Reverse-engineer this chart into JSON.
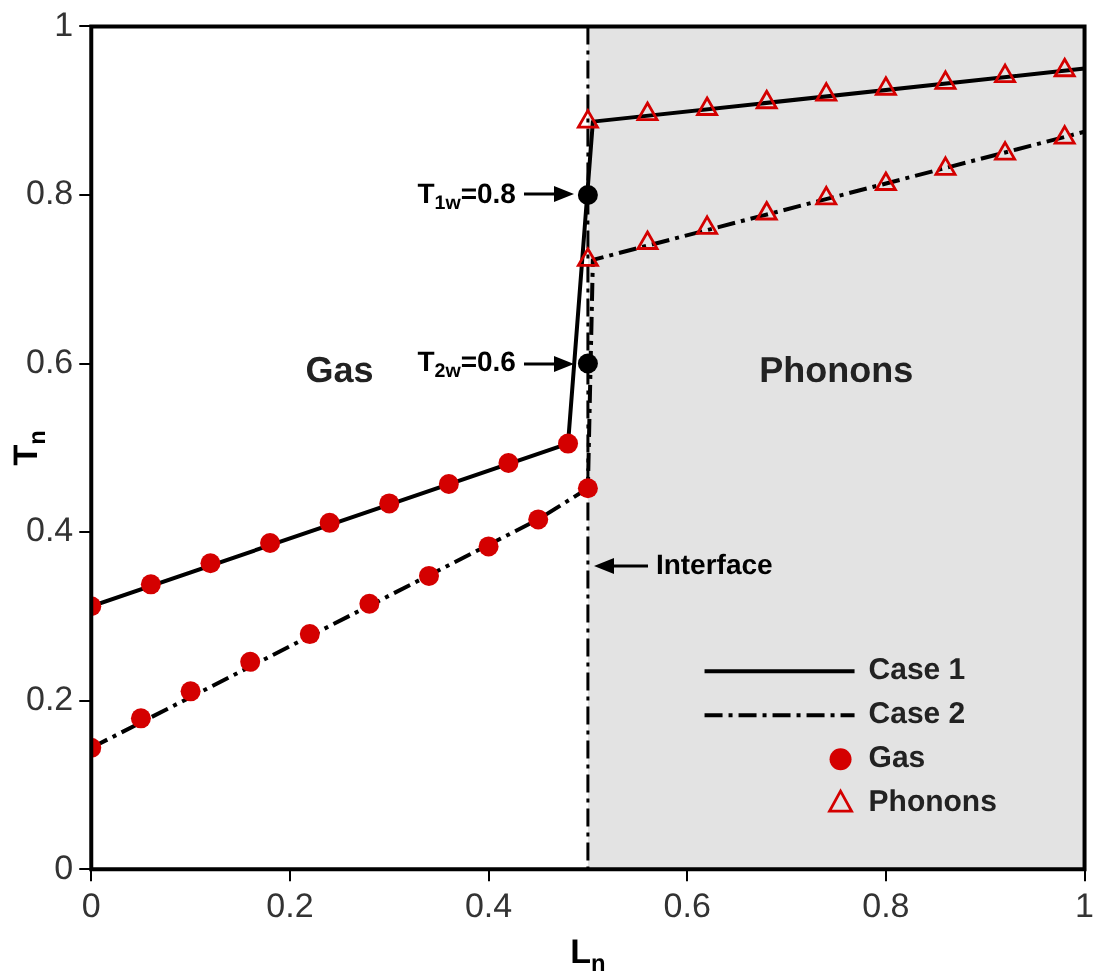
{
  "chart_data": {
    "type": "line",
    "xlabel": "L$_{n}$",
    "ylabel": "T$_{n}$",
    "xlim": [
      0,
      1
    ],
    "ylim": [
      0,
      1
    ],
    "xticks": [
      0,
      0.2,
      0.4,
      0.6,
      0.8,
      1
    ],
    "yticks": [
      0,
      0.2,
      0.4,
      0.6,
      0.8,
      1
    ],
    "grid": false,
    "legend": "bottom right",
    "series": [
      {
        "name": "Case 1",
        "type": "line",
        "color": "#000000",
        "line_style": "solid",
        "marker": "none",
        "x": [
          0,
          0.48,
          0.505,
          1
        ],
        "values": [
          0.312,
          0.505,
          0.887,
          0.95
        ]
      },
      {
        "name": "Case 2",
        "type": "line",
        "color": "#000000",
        "line_style": "dashed",
        "marker": "none",
        "x": [
          0,
          0.45,
          0.5,
          0.505,
          1
        ],
        "values": [
          0.144,
          0.415,
          0.452,
          0.723,
          0.875
        ]
      },
      {
        "name": "Gas",
        "type": "scatter",
        "color": "#d40000",
        "marker": "circle",
        "x": [
          0,
          0.06,
          0.12,
          0.18,
          0.24,
          0.3,
          0.36,
          0.42,
          0.48,
          0,
          0.05,
          0.1,
          0.16,
          0.22,
          0.28,
          0.34,
          0.4,
          0.45,
          0.5
        ],
        "values": [
          0.312,
          0.338,
          0.363,
          0.387,
          0.411,
          0.434,
          0.457,
          0.482,
          0.505,
          0.144,
          0.179,
          0.211,
          0.246,
          0.279,
          0.315,
          0.348,
          0.383,
          0.415,
          0.452
        ]
      },
      {
        "name": "Phonons",
        "type": "scatter",
        "color": "#d40000",
        "marker": "triangle",
        "x": [
          0.5,
          0.56,
          0.62,
          0.68,
          0.74,
          0.8,
          0.86,
          0.92,
          0.98,
          0.5,
          0.56,
          0.62,
          0.68,
          0.74,
          0.8,
          0.86,
          0.92,
          0.98
        ],
        "values": [
          0.887,
          0.896,
          0.902,
          0.91,
          0.919,
          0.926,
          0.933,
          0.941,
          0.948,
          0.723,
          0.743,
          0.761,
          0.778,
          0.796,
          0.813,
          0.831,
          0.849,
          0.868
        ]
      },
      {
        "type": "scatter",
        "color": "#000000",
        "marker": "circle",
        "x": [
          0.5,
          0.5
        ],
        "values": [
          0.8,
          0.6
        ]
      }
    ],
    "ref_lines": [
      {
        "axis": "x",
        "value": 0.5,
        "label": "Interface",
        "line_style": "dashed",
        "color": "#000000"
      }
    ],
    "bands": [
      {
        "axis": "x",
        "from": 0.5,
        "to": 1,
        "label": "Phonons",
        "color": "#e3e3e3"
      }
    ],
    "annotations": [
      "Gas",
      {
        "text": "T$_{1w}$=0.8",
        "x": 0.5,
        "y": 0.8
      },
      {
        "text": "T$_{2w}$=0.6",
        "x": 0.5,
        "y": 0.6
      }
    ]
  }
}
